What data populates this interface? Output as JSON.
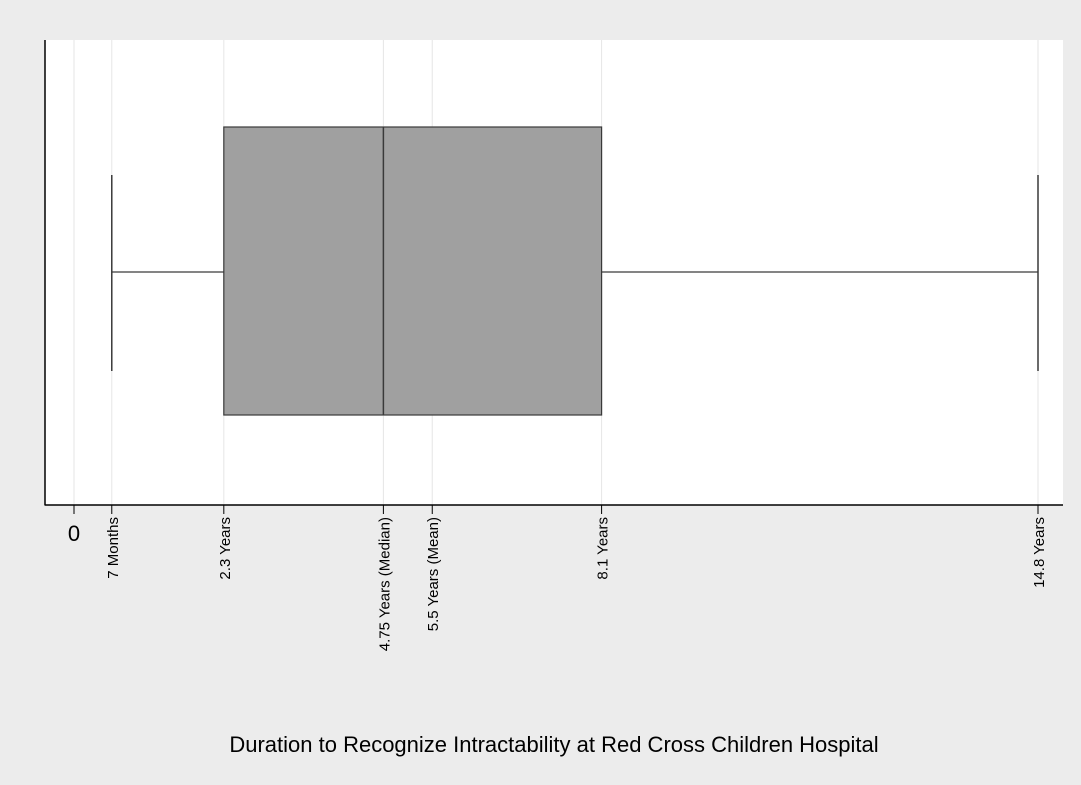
{
  "chart_data": {
    "type": "box",
    "orientation": "horizontal",
    "box": {
      "min": 0.58,
      "q1": 2.3,
      "median": 4.75,
      "mean": 5.5,
      "q3": 8.1,
      "max": 14.8
    },
    "ticks": [
      {
        "value": 0,
        "label": "0",
        "rotated": false
      },
      {
        "value": 0.58,
        "label": "7 Months",
        "rotated": true
      },
      {
        "value": 2.3,
        "label": "2.3 Years",
        "rotated": true
      },
      {
        "value": 4.75,
        "label": "4.75 Years (Median)",
        "rotated": true
      },
      {
        "value": 5.5,
        "label": "5.5 Years (Mean)",
        "rotated": true
      },
      {
        "value": 8.1,
        "label": "8.1 Years",
        "rotated": true
      },
      {
        "value": 14.8,
        "label": "14.8 Years",
        "rotated": true
      }
    ],
    "xlabel": "Duration to Recognize Intractability at Red Cross Children Hospital",
    "xlim": [
      -0.5,
      15.1
    ],
    "grid": true,
    "legend": "none",
    "colors": {
      "box_fill": "#a0a0a0",
      "box_stroke": "#3a3a3a",
      "whisker": "#3a3a3a",
      "grid": "#e6e6e6",
      "plot_bg": "#ffffff",
      "page_bg": "#ececec",
      "axis": "#000000",
      "text": "#000000"
    }
  }
}
